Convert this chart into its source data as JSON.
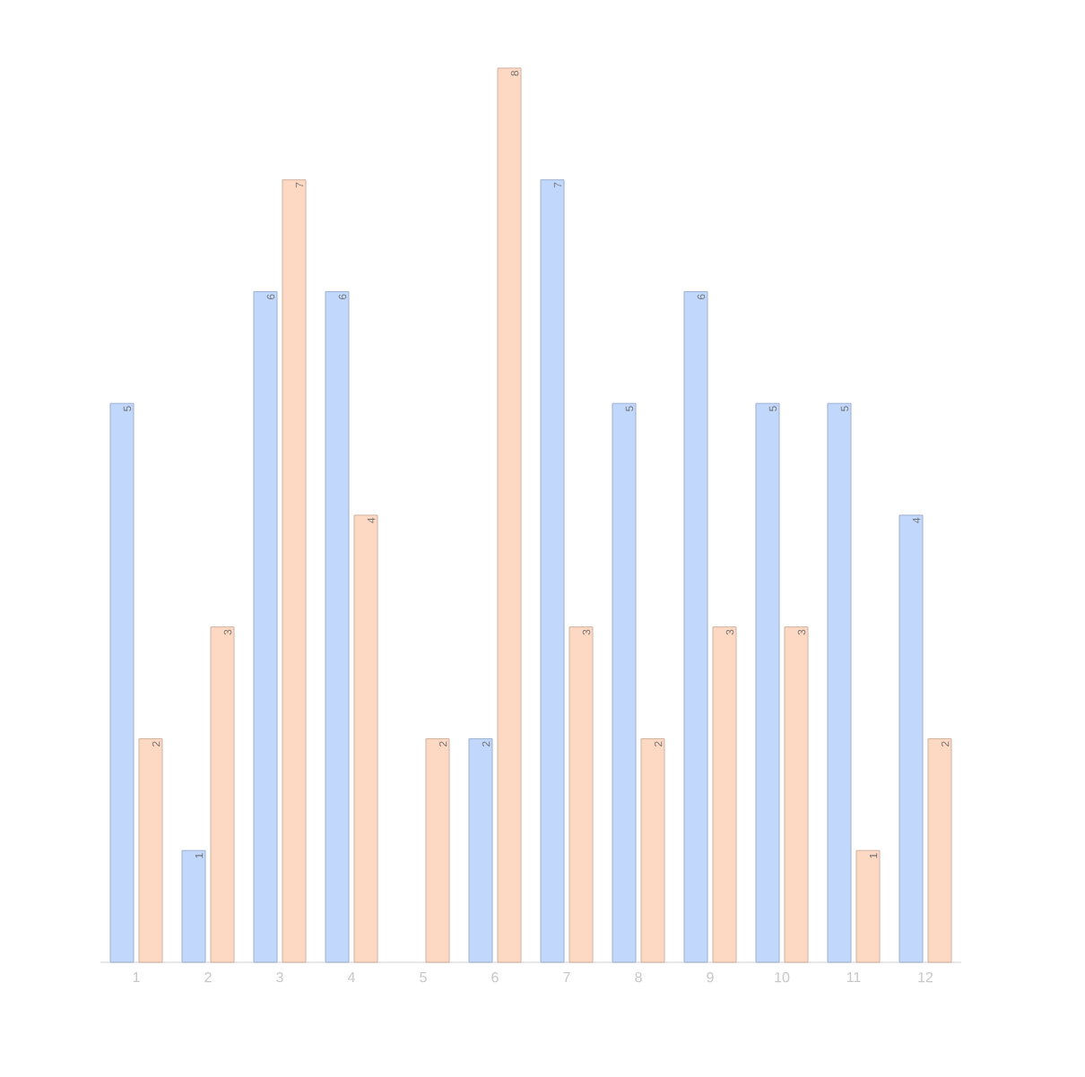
{
  "chart_data": {
    "type": "bar",
    "categories": [
      "1",
      "2",
      "3",
      "4",
      "5",
      "6",
      "7",
      "8",
      "9",
      "10",
      "11",
      "12"
    ],
    "series": [
      {
        "color": "#c1d7fb",
        "values": [
          5,
          1,
          6,
          6,
          null,
          2,
          7,
          5,
          6,
          5,
          5,
          4
        ]
      },
      {
        "color": "#fdd8c3",
        "values": [
          2,
          3,
          7,
          4,
          2,
          8,
          3,
          2,
          3,
          3,
          1,
          2
        ]
      }
    ],
    "data_labels": true,
    "tick_labels": "x"
  }
}
